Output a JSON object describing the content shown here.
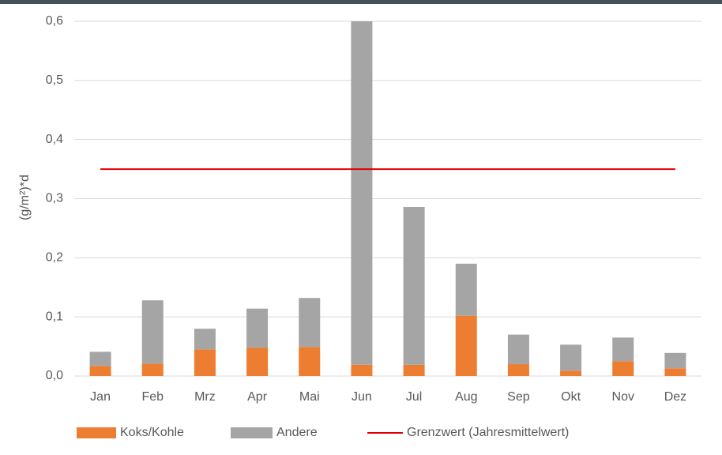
{
  "chart_data": {
    "type": "stacked_bar",
    "y_label": "(g/m²)*d",
    "categories": [
      "Jan",
      "Feb",
      "Mrz",
      "Apr",
      "Mai",
      "Jun",
      "Jul",
      "Aug",
      "Sep",
      "Okt",
      "Nov",
      "Dez"
    ],
    "series": [
      {
        "name": "Koks/Kohle",
        "color": "#ed7d31",
        "values": [
          0.017,
          0.021,
          0.045,
          0.048,
          0.049,
          0.019,
          0.019,
          0.102,
          0.02,
          0.009,
          0.025,
          0.013
        ]
      },
      {
        "name": "Andere",
        "color": "#a5a5a5",
        "values": [
          0.024,
          0.107,
          0.035,
          0.066,
          0.083,
          0.581,
          0.267,
          0.088,
          0.05,
          0.044,
          0.04,
          0.026
        ]
      }
    ],
    "reference_line": {
      "name": "Grenzwert (Jahresmittelwert)",
      "value": 0.35,
      "color": "#e00000"
    },
    "ylim": [
      0,
      0.6
    ],
    "yticks": [
      {
        "value": 0,
        "label": "0,0"
      },
      {
        "value": 0.1,
        "label": "0,1"
      },
      {
        "value": 0.2,
        "label": "0,2"
      },
      {
        "value": 0.3,
        "label": "0,3"
      },
      {
        "value": 0.4,
        "label": "0,4"
      },
      {
        "value": 0.5,
        "label": "0,5"
      },
      {
        "value": 0.6,
        "label": "0,6"
      }
    ],
    "grid": true
  }
}
